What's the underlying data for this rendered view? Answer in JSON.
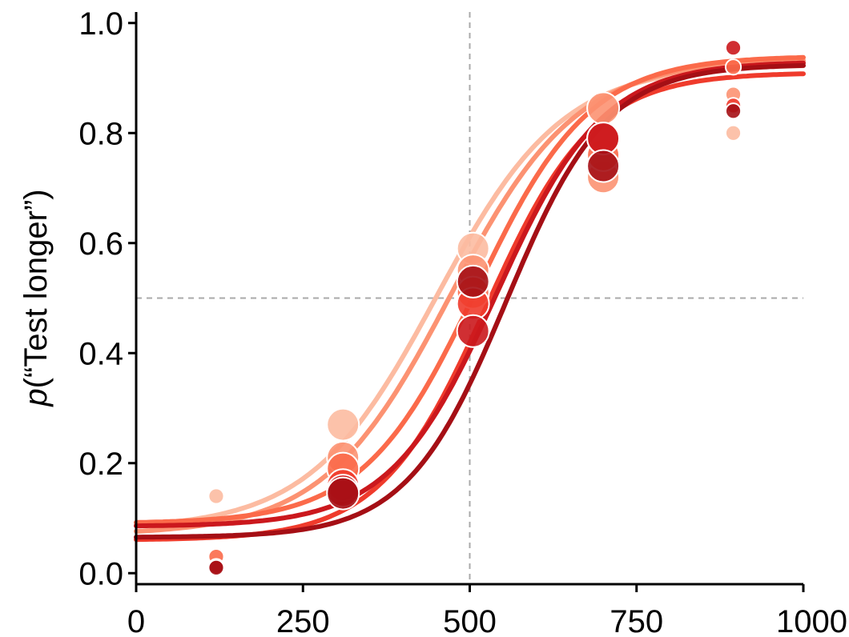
{
  "chart_data": {
    "type": "scatter",
    "ylabel_var": "p",
    "ylabel_rest": "(“Test longer”)",
    "xlabel": "",
    "xlim": [
      0,
      1000
    ],
    "ylim": [
      -0.02,
      1.02
    ],
    "xticks": [
      "0",
      "250",
      "500",
      "750",
      "1000"
    ],
    "xtick_values": [
      0,
      250,
      500,
      750,
      1000
    ],
    "yticks": [
      "0.0",
      "0.2",
      "0.4",
      "0.6",
      "0.8",
      "1.0"
    ],
    "ytick_values": [
      0.0,
      0.2,
      0.4,
      0.6,
      0.8,
      1.0
    ],
    "reference_lines": {
      "x": 500,
      "y": 0.5
    },
    "grid": false,
    "legend": "none",
    "curves": [
      {
        "color": "#fcbba1",
        "lower": 0.08,
        "upper": 0.925,
        "pse": 450,
        "slope": 95
      },
      {
        "color": "#fc9272",
        "lower": 0.07,
        "upper": 0.935,
        "pse": 470,
        "slope": 95
      },
      {
        "color": "#fb6a4a",
        "lower": 0.09,
        "upper": 0.94,
        "pse": 510,
        "slope": 85
      },
      {
        "color": "#ef3b2c",
        "lower": 0.06,
        "upper": 0.91,
        "pse": 525,
        "slope": 80
      },
      {
        "color": "#cb181d",
        "lower": 0.085,
        "upper": 0.93,
        "pse": 540,
        "slope": 80
      },
      {
        "color": "#a50f15",
        "lower": 0.065,
        "upper": 0.925,
        "pse": 555,
        "slope": 75
      }
    ],
    "points": [
      {
        "x": 120,
        "y": 0.14,
        "size": 0.2,
        "color": "#fcbba1"
      },
      {
        "x": 120,
        "y": 0.03,
        "size": 0.2,
        "color": "#fb6a4a"
      },
      {
        "x": 120,
        "y": 0.012,
        "size": 0.2,
        "color": "#cb181d"
      },
      {
        "x": 120,
        "y": 0.01,
        "size": 0.2,
        "color": "#a50f15"
      },
      {
        "x": 310,
        "y": 0.27,
        "size": 1.0,
        "color": "#fcbba1"
      },
      {
        "x": 310,
        "y": 0.21,
        "size": 1.0,
        "color": "#fc9272"
      },
      {
        "x": 310,
        "y": 0.19,
        "size": 1.0,
        "color": "#fb6a4a"
      },
      {
        "x": 310,
        "y": 0.16,
        "size": 1.0,
        "color": "#ef3b2c"
      },
      {
        "x": 310,
        "y": 0.15,
        "size": 1.0,
        "color": "#cb181d"
      },
      {
        "x": 310,
        "y": 0.145,
        "size": 1.0,
        "color": "#a50f15"
      },
      {
        "x": 505,
        "y": 0.59,
        "size": 1.0,
        "color": "#fcbba1"
      },
      {
        "x": 505,
        "y": 0.55,
        "size": 1.0,
        "color": "#fc9272"
      },
      {
        "x": 505,
        "y": 0.51,
        "size": 1.0,
        "color": "#fb6a4a"
      },
      {
        "x": 505,
        "y": 0.49,
        "size": 1.0,
        "color": "#ef3b2c"
      },
      {
        "x": 505,
        "y": 0.44,
        "size": 1.0,
        "color": "#cb181d"
      },
      {
        "x": 505,
        "y": 0.53,
        "size": 1.0,
        "color": "#a50f15"
      },
      {
        "x": 700,
        "y": 0.72,
        "size": 1.0,
        "color": "#fc9272"
      },
      {
        "x": 700,
        "y": 0.845,
        "size": 1.0,
        "color": "#fc9272"
      },
      {
        "x": 700,
        "y": 0.76,
        "size": 1.0,
        "color": "#fb6a4a"
      },
      {
        "x": 700,
        "y": 0.79,
        "size": 1.0,
        "color": "#ef3b2c"
      },
      {
        "x": 700,
        "y": 0.79,
        "size": 1.0,
        "color": "#cb181d"
      },
      {
        "x": 700,
        "y": 0.74,
        "size": 1.0,
        "color": "#a50f15"
      },
      {
        "x": 895,
        "y": 0.8,
        "size": 0.2,
        "color": "#fcbba1"
      },
      {
        "x": 895,
        "y": 0.87,
        "size": 0.2,
        "color": "#fc9272"
      },
      {
        "x": 895,
        "y": 0.92,
        "size": 0.2,
        "color": "#fb6a4a"
      },
      {
        "x": 895,
        "y": 0.85,
        "size": 0.2,
        "color": "#ef3b2c"
      },
      {
        "x": 895,
        "y": 0.955,
        "size": 0.2,
        "color": "#cb181d"
      },
      {
        "x": 895,
        "y": 0.84,
        "size": 0.2,
        "color": "#a50f15"
      }
    ]
  }
}
